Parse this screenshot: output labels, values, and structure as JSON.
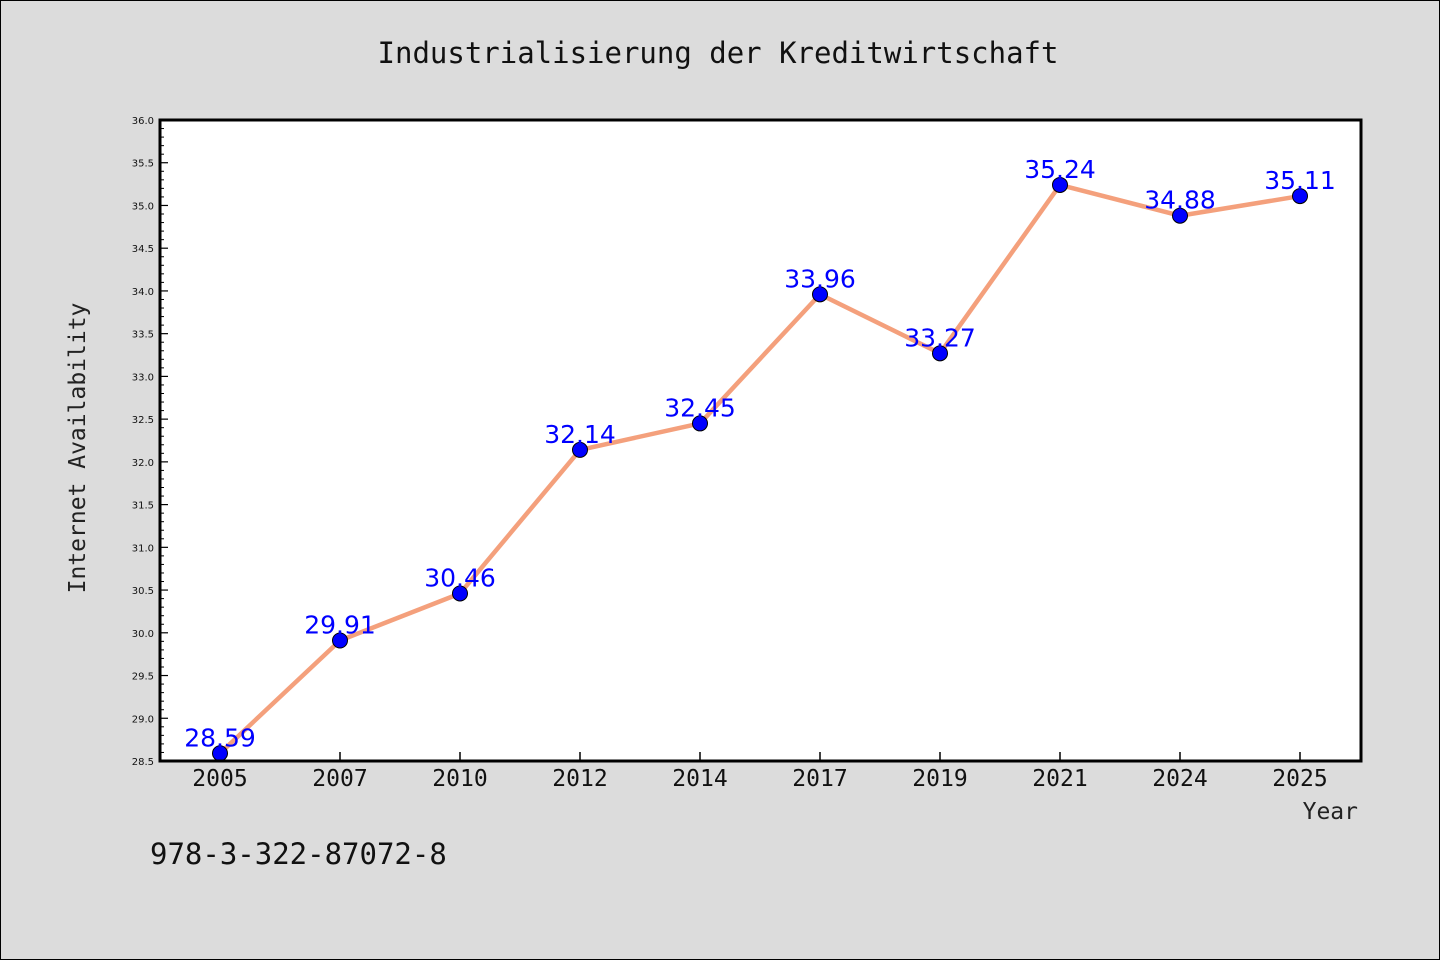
{
  "chart_data": {
    "type": "line",
    "title": "Industrialisierung der Kreditwirtschaft",
    "xlabel": "Year",
    "ylabel": "Internet Availability",
    "categories": [
      "2005",
      "2007",
      "2010",
      "2012",
      "2014",
      "2017",
      "2019",
      "2021",
      "2024",
      "2025"
    ],
    "series": [
      {
        "values": [
          28.59,
          29.91,
          30.46,
          32.14,
          32.45,
          33.96,
          33.27,
          35.24,
          34.88,
          35.11
        ],
        "labels": [
          "28.59",
          "29.91",
          "30.46",
          "32.14",
          "32.45",
          "33.96",
          "33.27",
          "35.24",
          "34.88",
          "35.11"
        ],
        "line_color": "#f4a07c",
        "marker_color": "#0000ff",
        "label_color": "#0000ff"
      }
    ],
    "ylim": [
      28.5,
      36.0
    ],
    "yticks": [
      "28.5",
      "29.0",
      "29.5",
      "30.0",
      "30.5",
      "31.0",
      "31.5",
      "32.0",
      "32.5",
      "33.0",
      "33.5",
      "34.0",
      "34.5",
      "35.0",
      "35.5",
      "36.0"
    ],
    "grid": false,
    "background": "#dcdcdc",
    "plot_background": "#ffffff"
  },
  "footer": {
    "isbn": "978-3-322-87072-8"
  }
}
